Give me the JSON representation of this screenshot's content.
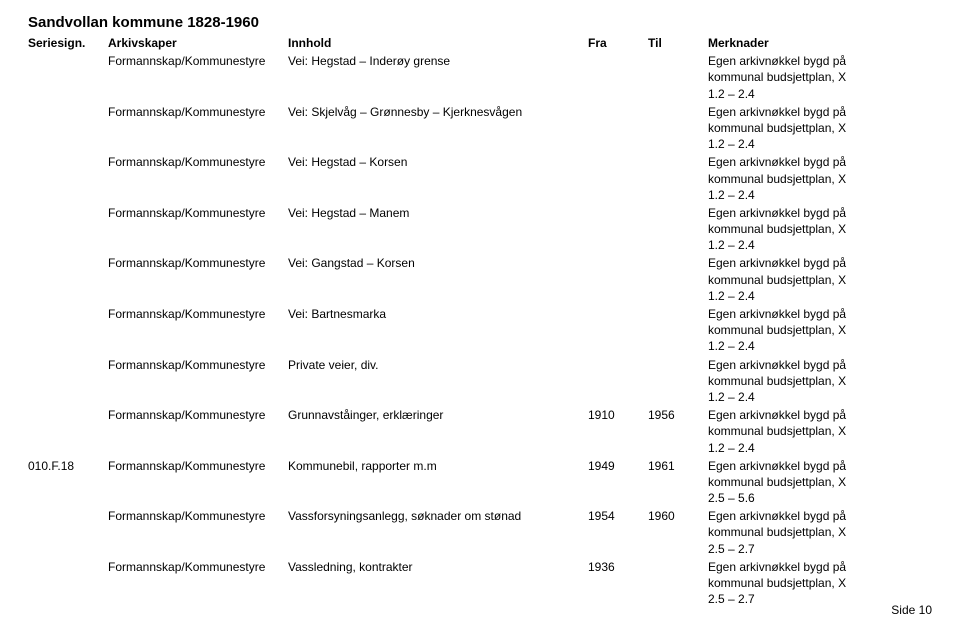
{
  "title": "Sandvollan kommune 1828-1960",
  "headers": {
    "seriesign": "Seriesign.",
    "arkivskaper": "Arkivskaper",
    "innhold": "Innhold",
    "fra": "Fra",
    "til": "Til",
    "merknader": "Merknader"
  },
  "rows": [
    {
      "signal": "",
      "arkiv": "Formannskap/Kommunestyre",
      "innhold": "Vei: Hegstad – Inderøy grense",
      "fra": "",
      "til": "",
      "merk": "Egen arkivnøkkel bygd på\nkommunal budsjettplan, X\n1.2 – 2.4"
    },
    {
      "signal": "",
      "arkiv": "Formannskap/Kommunestyre",
      "innhold": "Vei: Skjelvåg – Grønnesby – Kjerknesvågen",
      "fra": "",
      "til": "",
      "merk": "Egen arkivnøkkel bygd på\nkommunal budsjettplan, X\n1.2 – 2.4"
    },
    {
      "signal": "",
      "arkiv": "Formannskap/Kommunestyre",
      "innhold": "Vei: Hegstad – Korsen",
      "fra": "",
      "til": "",
      "merk": "Egen arkivnøkkel bygd på\nkommunal budsjettplan, X\n1.2 – 2.4"
    },
    {
      "signal": "",
      "arkiv": "Formannskap/Kommunestyre",
      "innhold": "Vei: Hegstad – Manem",
      "fra": "",
      "til": "",
      "merk": "Egen arkivnøkkel bygd på\nkommunal budsjettplan, X\n1.2 – 2.4"
    },
    {
      "signal": "",
      "arkiv": "Formannskap/Kommunestyre",
      "innhold": "Vei: Gangstad – Korsen",
      "fra": "",
      "til": "",
      "merk": "Egen arkivnøkkel bygd på\nkommunal budsjettplan, X\n1.2 – 2.4"
    },
    {
      "signal": "",
      "arkiv": "Formannskap/Kommunestyre",
      "innhold": "Vei: Bartnesmarka",
      "fra": "",
      "til": "",
      "merk": "Egen arkivnøkkel bygd på\nkommunal budsjettplan, X\n1.2 – 2.4"
    },
    {
      "signal": "",
      "arkiv": "Formannskap/Kommunestyre",
      "innhold": "Private veier, div.",
      "fra": "",
      "til": "",
      "merk": "Egen arkivnøkkel bygd på\nkommunal budsjettplan, X\n1.2 – 2.4"
    },
    {
      "signal": "",
      "arkiv": "Formannskap/Kommunestyre",
      "innhold": "Grunnavståinger, erklæringer",
      "fra": "1910",
      "til": "1956",
      "merk": "Egen arkivnøkkel bygd på\nkommunal budsjettplan, X\n1.2 – 2.4"
    },
    {
      "signal": "010.F.18",
      "arkiv": "Formannskap/Kommunestyre",
      "innhold": "Kommunebil, rapporter m.m",
      "fra": "1949",
      "til": "1961",
      "merk": "Egen arkivnøkkel bygd på\nkommunal budsjettplan, X\n2.5 – 5.6"
    },
    {
      "signal": "",
      "arkiv": "Formannskap/Kommunestyre",
      "innhold": "Vassforsyningsanlegg, søknader om stønad",
      "fra": "1954",
      "til": "1960",
      "merk": "Egen arkivnøkkel bygd på\nkommunal budsjettplan, X\n2.5 – 2.7"
    },
    {
      "signal": "",
      "arkiv": "Formannskap/Kommunestyre",
      "innhold": "Vassledning, kontrakter",
      "fra": "1936",
      "til": "",
      "merk": "Egen arkivnøkkel bygd på\nkommunal budsjettplan, X\n2.5 – 2.7"
    }
  ],
  "footer": "Side 10"
}
